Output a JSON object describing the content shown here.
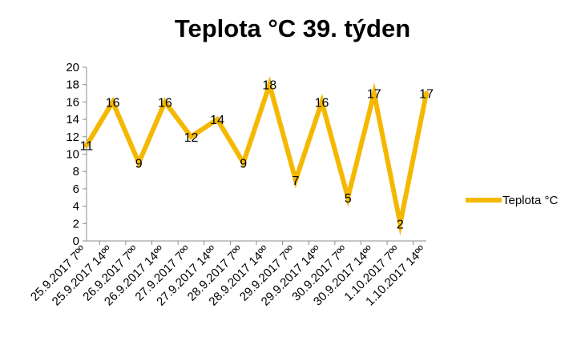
{
  "chart_data": {
    "type": "line",
    "title": "Teplota °C 39. týden",
    "xlabel": "",
    "ylabel": "",
    "ylim": [
      0,
      20
    ],
    "yticks": [
      0,
      2,
      4,
      6,
      8,
      10,
      12,
      14,
      16,
      18,
      20
    ],
    "categories": [
      "25.9.2017 7ºº",
      "25.9.2017 14ºº",
      "26.9.2017 7ºº",
      "26.9.2017 14ºº",
      "27.9.2017 7ºº",
      "27.9.2017 14ºº",
      "28.9.2017 7ºº",
      "28.9.2017 14ºº",
      "29.9.2017 7ºº",
      "29.9.2017 14ºº",
      "30.9.2017 7ºº",
      "30.9.2017 14ºº",
      "1.10.2017 7ºº",
      "1.10.2017 14ºº"
    ],
    "series": [
      {
        "name": "Teplota °C",
        "color": "#F5B800",
        "values": [
          11,
          16,
          9,
          16,
          12,
          14,
          9,
          18,
          7,
          16,
          5,
          17,
          2,
          17
        ]
      }
    ],
    "grid": false,
    "legend": "right",
    "data_labels": true
  }
}
